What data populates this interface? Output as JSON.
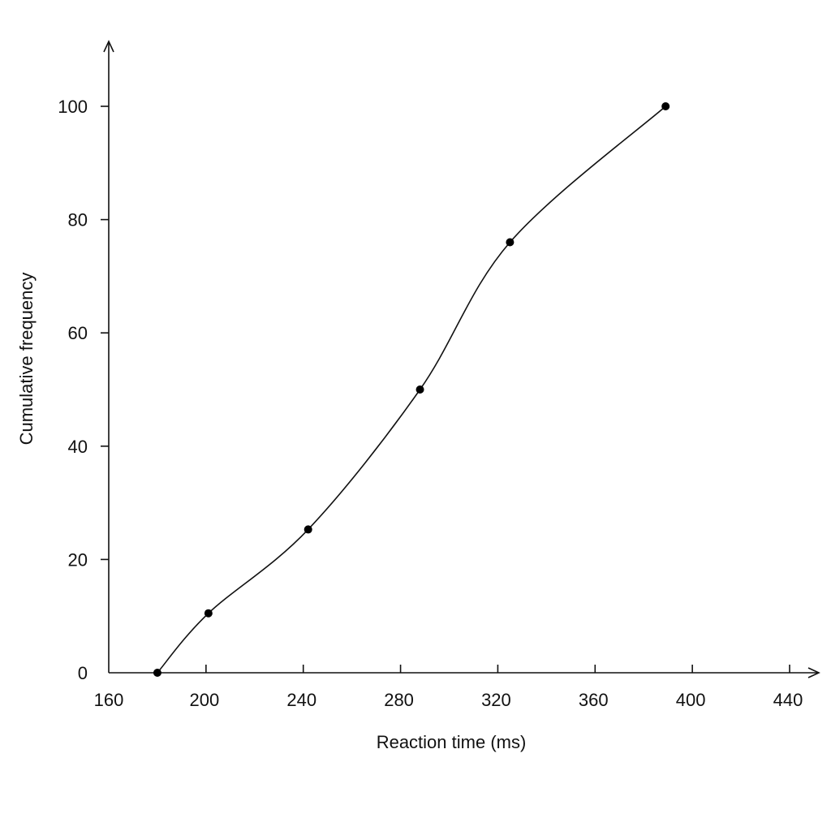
{
  "chart_data": {
    "type": "line",
    "title": "",
    "xlabel": "Reaction time (ms)",
    "ylabel": "Cumulative frequency",
    "xlim": [
      160,
      440
    ],
    "ylim": [
      0,
      100
    ],
    "x_ticks": [
      160,
      200,
      240,
      280,
      320,
      360,
      400,
      440
    ],
    "y_ticks": [
      0,
      20,
      40,
      60,
      80,
      100
    ],
    "grid": false,
    "smooth": true,
    "series": [
      {
        "x": [
          180,
          201,
          242,
          288,
          325,
          389
        ],
        "y": [
          0,
          10.5,
          25.3,
          50,
          76,
          100
        ]
      }
    ],
    "colors": {
      "line": "#111111",
      "point": "#000000"
    }
  }
}
